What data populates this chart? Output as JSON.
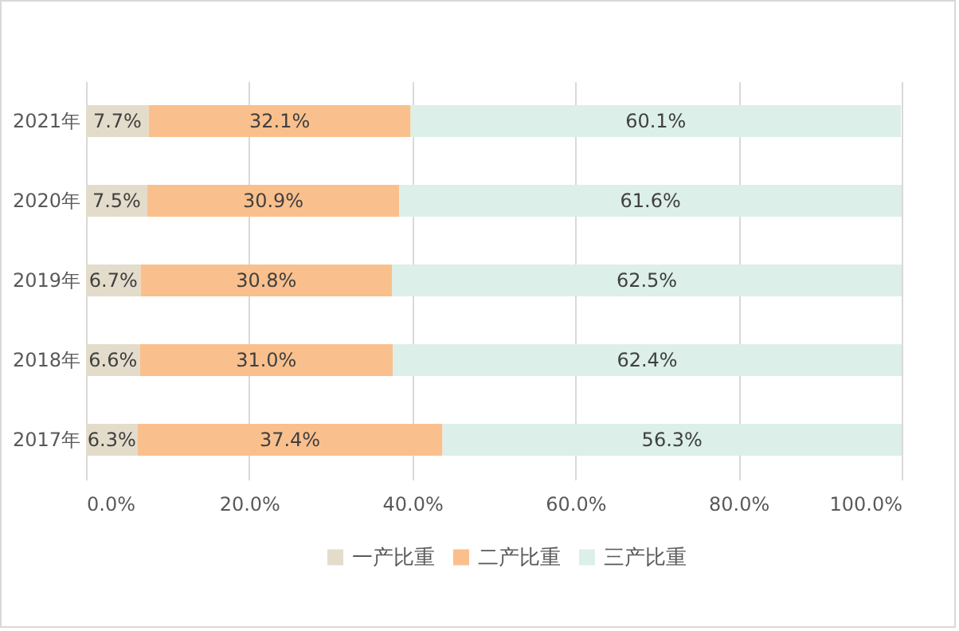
{
  "chart_data": {
    "type": "bar",
    "orientation": "horizontal",
    "stacked": true,
    "categories": [
      "2021年",
      "2020年",
      "2019年",
      "2018年",
      "2017年"
    ],
    "series": [
      {
        "name": "一产比重",
        "color": "#e4dccb",
        "values": [
          7.7,
          7.5,
          6.7,
          6.6,
          6.3
        ],
        "value_labels": [
          "7.7%",
          "7.5%",
          "6.7%",
          "6.6%",
          "6.3%"
        ]
      },
      {
        "name": "二产比重",
        "color": "#f9c08d",
        "values": [
          32.1,
          30.9,
          30.8,
          31.0,
          37.4
        ],
        "value_labels": [
          "32.1%",
          "30.9%",
          "30.8%",
          "31.0%",
          "37.4%"
        ]
      },
      {
        "name": "三产比重",
        "color": "#dcefe8",
        "values": [
          60.1,
          61.6,
          62.5,
          62.4,
          56.3
        ],
        "value_labels": [
          "60.1%",
          "61.6%",
          "62.5%",
          "62.4%",
          "56.3%"
        ]
      }
    ],
    "xlim": [
      0,
      100
    ],
    "xticks": [
      {
        "value": 0,
        "label": "0.0%"
      },
      {
        "value": 20,
        "label": "20.0%"
      },
      {
        "value": 40,
        "label": "40.0%"
      },
      {
        "value": 60,
        "label": "60.0%"
      },
      {
        "value": 80,
        "label": "80.0%"
      },
      {
        "value": 100,
        "label": "100.0%"
      }
    ],
    "grid": "x",
    "legend": "bottom"
  }
}
